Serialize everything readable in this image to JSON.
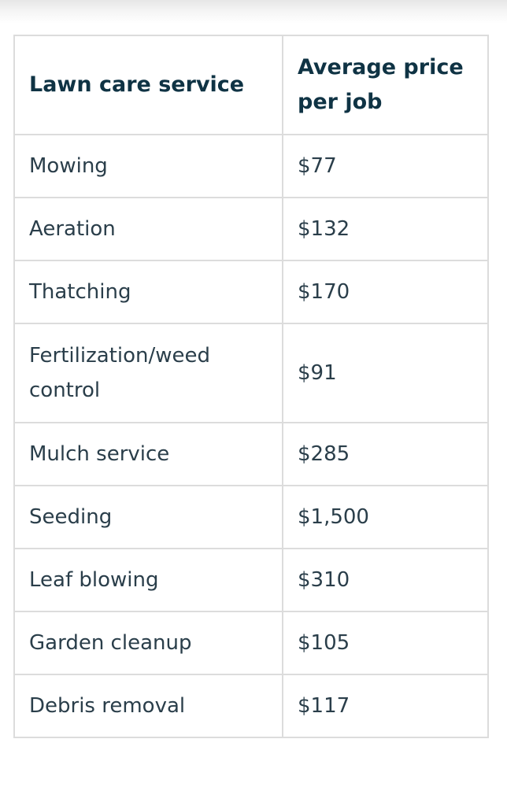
{
  "table": {
    "headers": [
      "Lawn care service",
      "Average price per job"
    ],
    "rows": [
      [
        "Mowing",
        "$77"
      ],
      [
        "Aeration",
        "$132"
      ],
      [
        "Thatching",
        "$170"
      ],
      [
        "Fertilization/weed control",
        "$91"
      ],
      [
        "Mulch service",
        "$285"
      ],
      [
        "Seeding",
        "$1,500"
      ],
      [
        "Leaf blowing",
        "$310"
      ],
      [
        "Garden cleanup",
        "$105"
      ],
      [
        "Debris removal",
        "$117"
      ]
    ]
  }
}
